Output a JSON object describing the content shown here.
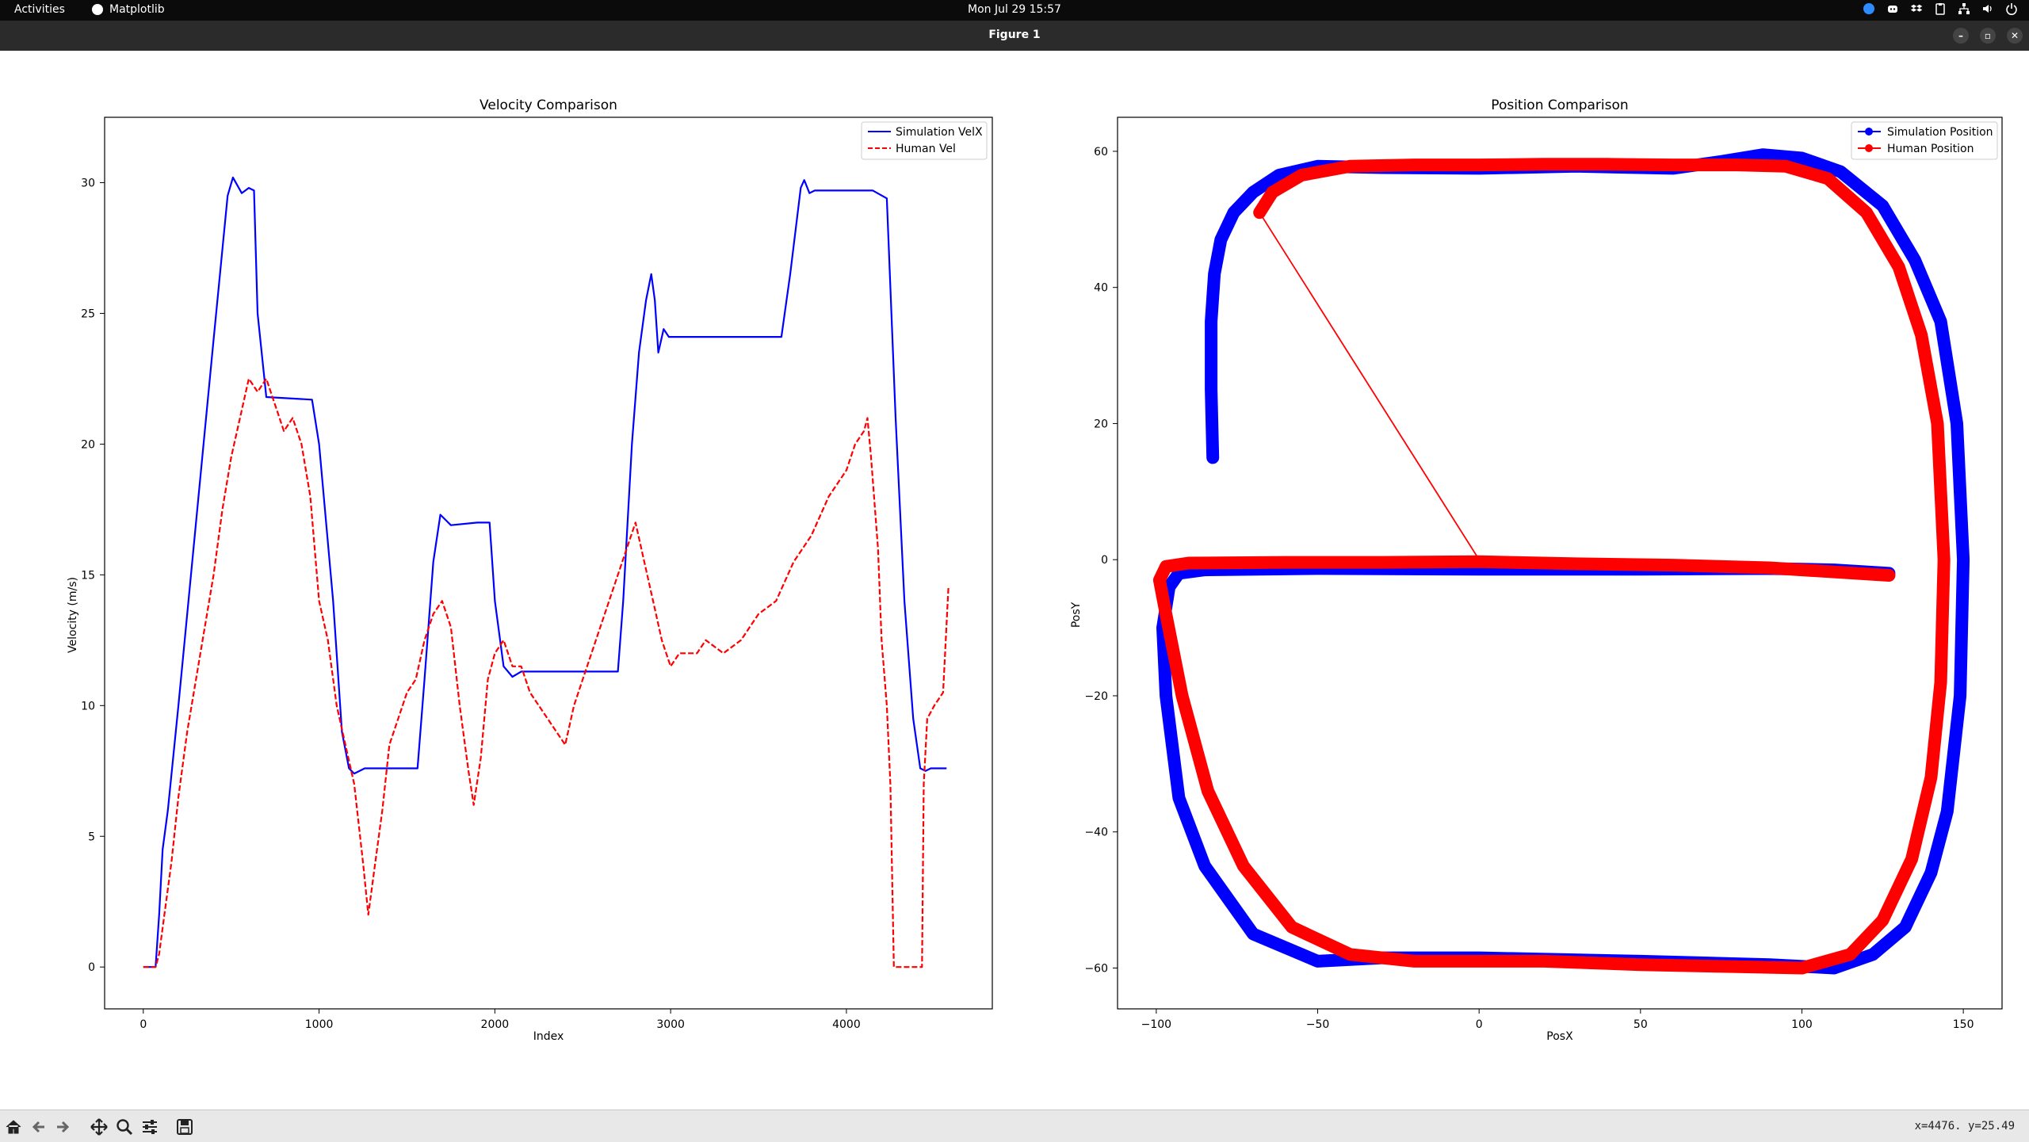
{
  "topbar": {
    "activities": "Activities",
    "app_name": "Matplotlib",
    "clock": "Mon Jul 29  15:57",
    "tray_icons": [
      "zoom-icon",
      "discord-icon",
      "dropbox-icon",
      "clipboard-icon",
      "network-icon",
      "volume-icon",
      "power-icon"
    ]
  },
  "window": {
    "title": "Figure 1",
    "buttons": [
      "minimize-icon",
      "maximize-icon",
      "close-icon"
    ]
  },
  "toolbar": {
    "icons": [
      "home-icon",
      "back-icon",
      "forward-icon",
      "pan-icon",
      "zoom-icon",
      "configure-subplots-icon",
      "save-icon"
    ],
    "coords": "x=4476. y=25.49"
  },
  "chart_data": [
    {
      "type": "line",
      "title": "Velocity Comparison",
      "xlabel": "Index",
      "ylabel": "Velocity (m/s)",
      "xlim": [
        -220,
        4830
      ],
      "ylim": [
        -1.6,
        32.5
      ],
      "xticks": [
        0,
        1000,
        2000,
        3000,
        4000
      ],
      "yticks": [
        0,
        5,
        10,
        15,
        20,
        25,
        30
      ],
      "legend": "top-right",
      "grid": false,
      "series": [
        {
          "name": "Simulation VelX",
          "color": "#0000ff",
          "style": "solid",
          "points": [
            [
              0,
              0
            ],
            [
              70,
              0
            ],
            [
              90,
              2
            ],
            [
              110,
              4.5
            ],
            [
              140,
              6
            ],
            [
              200,
              10
            ],
            [
              300,
              17
            ],
            [
              400,
              24
            ],
            [
              480,
              29.5
            ],
            [
              510,
              30.2
            ],
            [
              560,
              29.6
            ],
            [
              600,
              29.8
            ],
            [
              630,
              29.7
            ],
            [
              650,
              25
            ],
            [
              700,
              21.8
            ],
            [
              960,
              21.7
            ],
            [
              1000,
              20
            ],
            [
              1080,
              14
            ],
            [
              1130,
              9
            ],
            [
              1170,
              7.6
            ],
            [
              1200,
              7.4
            ],
            [
              1260,
              7.6
            ],
            [
              1560,
              7.6
            ],
            [
              1600,
              11
            ],
            [
              1650,
              15.5
            ],
            [
              1690,
              17.3
            ],
            [
              1720,
              17.1
            ],
            [
              1750,
              16.9
            ],
            [
              1900,
              17
            ],
            [
              1970,
              17
            ],
            [
              2000,
              14
            ],
            [
              2050,
              11.5
            ],
            [
              2100,
              11.1
            ],
            [
              2150,
              11.3
            ],
            [
              2700,
              11.3
            ],
            [
              2730,
              14
            ],
            [
              2780,
              20
            ],
            [
              2820,
              23.5
            ],
            [
              2860,
              25.5
            ],
            [
              2890,
              26.5
            ],
            [
              2910,
              25.5
            ],
            [
              2930,
              23.5
            ],
            [
              2960,
              24.4
            ],
            [
              2990,
              24.1
            ],
            [
              3100,
              24.1
            ],
            [
              3630,
              24.1
            ],
            [
              3680,
              26.5
            ],
            [
              3740,
              29.8
            ],
            [
              3760,
              30.1
            ],
            [
              3790,
              29.6
            ],
            [
              3820,
              29.7
            ],
            [
              4150,
              29.7
            ],
            [
              4230,
              29.4
            ],
            [
              4280,
              21
            ],
            [
              4330,
              14
            ],
            [
              4380,
              9.5
            ],
            [
              4420,
              7.6
            ],
            [
              4450,
              7.5
            ],
            [
              4480,
              7.6
            ],
            [
              4520,
              7.6
            ],
            [
              4570,
              7.6
            ]
          ]
        },
        {
          "name": "Human Vel",
          "color": "#ff0000",
          "style": "dashed",
          "points": [
            [
              0,
              0
            ],
            [
              60,
              0
            ],
            [
              70,
              0
            ],
            [
              90,
              0.5
            ],
            [
              120,
              2
            ],
            [
              160,
              4
            ],
            [
              200,
              6.5
            ],
            [
              250,
              9
            ],
            [
              300,
              11
            ],
            [
              350,
              13
            ],
            [
              400,
              15
            ],
            [
              450,
              17.5
            ],
            [
              500,
              19.5
            ],
            [
              550,
              21
            ],
            [
              600,
              22.5
            ],
            [
              650,
              22
            ],
            [
              700,
              22.5
            ],
            [
              750,
              21.5
            ],
            [
              800,
              20.5
            ],
            [
              850,
              21
            ],
            [
              900,
              20
            ],
            [
              950,
              18
            ],
            [
              1000,
              14
            ],
            [
              1050,
              12.5
            ],
            [
              1100,
              10
            ],
            [
              1150,
              8.5
            ],
            [
              1200,
              7
            ],
            [
              1250,
              4
            ],
            [
              1280,
              2
            ],
            [
              1320,
              4
            ],
            [
              1360,
              6
            ],
            [
              1400,
              8.5
            ],
            [
              1450,
              9.5
            ],
            [
              1500,
              10.5
            ],
            [
              1550,
              11
            ],
            [
              1600,
              12.5
            ],
            [
              1650,
              13.5
            ],
            [
              1700,
              14
            ],
            [
              1750,
              13
            ],
            [
              1800,
              10
            ],
            [
              1850,
              7.5
            ],
            [
              1880,
              6.2
            ],
            [
              1920,
              8
            ],
            [
              1960,
              11
            ],
            [
              2000,
              12
            ],
            [
              2050,
              12.5
            ],
            [
              2100,
              11.5
            ],
            [
              2150,
              11.5
            ],
            [
              2200,
              10.5
            ],
            [
              2250,
              10
            ],
            [
              2300,
              9.5
            ],
            [
              2350,
              9
            ],
            [
              2400,
              8.5
            ],
            [
              2450,
              10
            ],
            [
              2500,
              11
            ],
            [
              2550,
              12
            ],
            [
              2600,
              13
            ],
            [
              2650,
              14
            ],
            [
              2700,
              15
            ],
            [
              2750,
              16
            ],
            [
              2800,
              17
            ],
            [
              2850,
              15.5
            ],
            [
              2900,
              14
            ],
            [
              2950,
              12.5
            ],
            [
              3000,
              11.5
            ],
            [
              3050,
              12
            ],
            [
              3100,
              12
            ],
            [
              3150,
              12
            ],
            [
              3200,
              12.5
            ],
            [
              3300,
              12
            ],
            [
              3400,
              12.5
            ],
            [
              3500,
              13.5
            ],
            [
              3600,
              14
            ],
            [
              3700,
              15.5
            ],
            [
              3800,
              16.5
            ],
            [
              3900,
              18
            ],
            [
              4000,
              19
            ],
            [
              4050,
              20
            ],
            [
              4100,
              20.5
            ],
            [
              4120,
              21
            ],
            [
              4140,
              19.5
            ],
            [
              4180,
              16
            ],
            [
              4200,
              12.5
            ],
            [
              4230,
              10
            ],
            [
              4250,
              7
            ],
            [
              4270,
              0
            ],
            [
              4430,
              0
            ],
            [
              4440,
              7
            ],
            [
              4460,
              9.5
            ],
            [
              4500,
              10
            ],
            [
              4550,
              10.5
            ],
            [
              4580,
              14.5
            ]
          ]
        }
      ]
    },
    {
      "type": "scatter",
      "title": "Position Comparison",
      "xlabel": "PosX",
      "ylabel": "PosY",
      "xlim": [
        -112,
        162
      ],
      "ylim": [
        -66,
        65
      ],
      "xticks": [
        -100,
        -50,
        0,
        50,
        100,
        150
      ],
      "yticks": [
        -60,
        -40,
        -20,
        0,
        20,
        40,
        60
      ],
      "legend": "top-right",
      "grid": false,
      "series": [
        {
          "name": "Simulation Position",
          "color": "#0000ff",
          "marker": "o",
          "points": [
            [
              -82.5,
              15
            ],
            [
              -83,
              25
            ],
            [
              -83,
              35
            ],
            [
              -82,
              42
            ],
            [
              -80,
              47
            ],
            [
              -76,
              51
            ],
            [
              -70,
              54
            ],
            [
              -62,
              56.5
            ],
            [
              -50,
              57.8
            ],
            [
              -30,
              57.6
            ],
            [
              0,
              57.5
            ],
            [
              30,
              57.8
            ],
            [
              60,
              57.5
            ],
            [
              75,
              58.5
            ],
            [
              88,
              59.5
            ],
            [
              100,
              59
            ],
            [
              112,
              57
            ],
            [
              125,
              52
            ],
            [
              135,
              44
            ],
            [
              143,
              35
            ],
            [
              148,
              20
            ],
            [
              150,
              0
            ],
            [
              149,
              -20
            ],
            [
              145,
              -37
            ],
            [
              140,
              -46
            ],
            [
              132,
              -54
            ],
            [
              122,
              -58
            ],
            [
              110,
              -60
            ],
            [
              90,
              -59.5
            ],
            [
              50,
              -59
            ],
            [
              0,
              -58.5
            ],
            [
              -30,
              -58.5
            ],
            [
              -50,
              -59
            ],
            [
              -70,
              -55
            ],
            [
              -85,
              -45
            ],
            [
              -93,
              -35
            ],
            [
              -97,
              -20
            ],
            [
              -98,
              -10
            ],
            [
              -96,
              -4
            ],
            [
              -93,
              -2
            ],
            [
              -85,
              -1.5
            ],
            [
              -50,
              -1.3
            ],
            [
              0,
              -1.4
            ],
            [
              50,
              -1.4
            ],
            [
              90,
              -1.3
            ],
            [
              110,
              -1.5
            ],
            [
              127,
              -2
            ]
          ]
        },
        {
          "name": "Human Position",
          "color": "#ff0000",
          "marker": "o",
          "points": [
            [
              -68,
              51
            ],
            [
              -64,
              54
            ],
            [
              -55,
              56.5
            ],
            [
              -40,
              57.8
            ],
            [
              -20,
              58
            ],
            [
              0,
              58
            ],
            [
              20,
              58.1
            ],
            [
              40,
              58.1
            ],
            [
              60,
              58
            ],
            [
              80,
              58
            ],
            [
              95,
              57.8
            ],
            [
              108,
              56
            ],
            [
              120,
              51
            ],
            [
              130,
              43
            ],
            [
              137,
              33
            ],
            [
              142,
              20
            ],
            [
              144,
              0
            ],
            [
              143,
              -18
            ],
            [
              140,
              -32
            ],
            [
              134,
              -44
            ],
            [
              125,
              -53
            ],
            [
              115,
              -58
            ],
            [
              100,
              -60
            ],
            [
              80,
              -59.8
            ],
            [
              50,
              -59.5
            ],
            [
              20,
              -59
            ],
            [
              0,
              -59
            ],
            [
              -20,
              -59
            ],
            [
              -40,
              -58
            ],
            [
              -58,
              -54
            ],
            [
              -73,
              -45
            ],
            [
              -84,
              -34
            ],
            [
              -92,
              -20
            ],
            [
              -97,
              -8
            ],
            [
              -99,
              -3
            ],
            [
              -97,
              -1
            ],
            [
              -90,
              -0.5
            ],
            [
              -60,
              -0.4
            ],
            [
              -30,
              -0.4
            ],
            [
              0,
              -0.3
            ],
            [
              30,
              -0.6
            ],
            [
              60,
              -0.8
            ],
            [
              90,
              -1.2
            ],
            [
              110,
              -1.8
            ],
            [
              127,
              -2.3
            ]
          ]
        },
        {
          "name": "",
          "color": "#ff0000",
          "marker": "line",
          "points": [
            [
              -68,
              51
            ],
            [
              0,
              0
            ]
          ]
        }
      ]
    }
  ]
}
